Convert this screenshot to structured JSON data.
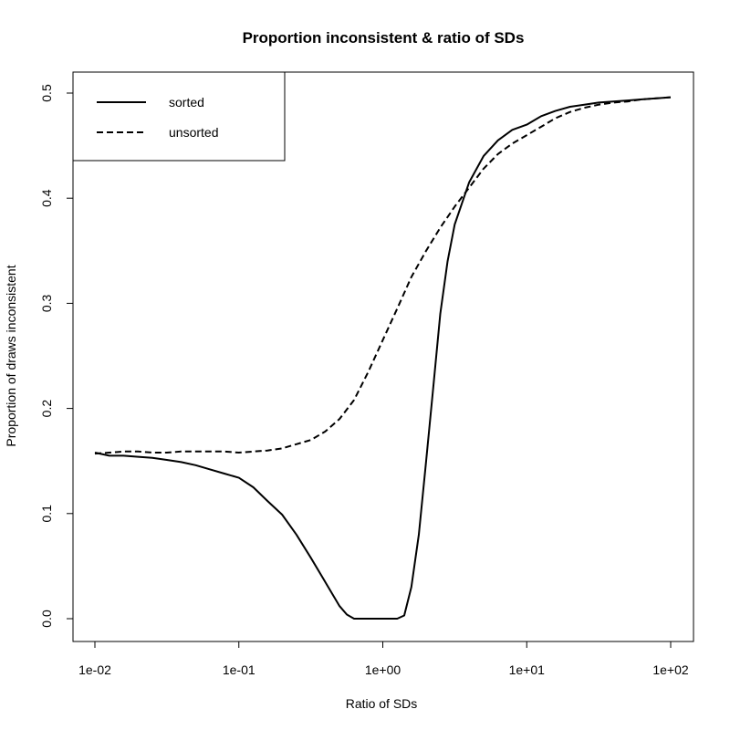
{
  "chart_data": {
    "type": "line",
    "title": "Proportion inconsistent & ratio of SDs",
    "xlabel": "Ratio of SDs",
    "ylabel": "Proportion of draws inconsistent",
    "x_scale": "log",
    "xlim": [
      0.01,
      100
    ],
    "ylim": [
      0.0,
      0.5
    ],
    "x_ticks": [
      {
        "value": 0.01,
        "label": "1e-02"
      },
      {
        "value": 0.1,
        "label": "1e-01"
      },
      {
        "value": 1,
        "label": "1e+00"
      },
      {
        "value": 10,
        "label": "1e+01"
      },
      {
        "value": 100,
        "label": "1e+02"
      }
    ],
    "y_ticks": [
      {
        "value": 0.0,
        "label": "0.0"
      },
      {
        "value": 0.1,
        "label": "0.1"
      },
      {
        "value": 0.2,
        "label": "0.2"
      },
      {
        "value": 0.3,
        "label": "0.3"
      },
      {
        "value": 0.4,
        "label": "0.4"
      },
      {
        "value": 0.5,
        "label": "0.5"
      }
    ],
    "grid": false,
    "legend_position": "top-left",
    "series": [
      {
        "name": "sorted",
        "line_style": "solid",
        "color": "#000000",
        "x": [
          0.01,
          0.0126,
          0.0158,
          0.02,
          0.0251,
          0.0316,
          0.0398,
          0.0501,
          0.0631,
          0.0794,
          0.1,
          0.126,
          0.158,
          0.2,
          0.251,
          0.316,
          0.398,
          0.501,
          0.562,
          0.631,
          0.708,
          0.794,
          0.891,
          1.0,
          1.12,
          1.26,
          1.41,
          1.58,
          1.78,
          2.0,
          2.24,
          2.51,
          2.82,
          3.16,
          3.98,
          5.01,
          6.31,
          7.94,
          10.0,
          12.6,
          15.8,
          20.0,
          25.1,
          31.6,
          39.8,
          50.1,
          63.1,
          79.4,
          100.0
        ],
        "y": [
          0.158,
          0.155,
          0.155,
          0.154,
          0.153,
          0.151,
          0.149,
          0.146,
          0.142,
          0.138,
          0.134,
          0.125,
          0.112,
          0.099,
          0.08,
          0.058,
          0.035,
          0.012,
          0.004,
          0.0,
          0.0,
          0.0,
          0.0,
          0.0,
          0.0,
          0.0,
          0.003,
          0.03,
          0.08,
          0.15,
          0.22,
          0.29,
          0.34,
          0.375,
          0.415,
          0.44,
          0.455,
          0.465,
          0.47,
          0.478,
          0.483,
          0.487,
          0.489,
          0.491,
          0.492,
          0.493,
          0.494,
          0.495,
          0.496
        ]
      },
      {
        "name": "unsorted",
        "line_style": "dashed",
        "color": "#000000",
        "x": [
          0.01,
          0.0126,
          0.0158,
          0.02,
          0.0251,
          0.0316,
          0.0398,
          0.0501,
          0.0631,
          0.0794,
          0.1,
          0.126,
          0.158,
          0.2,
          0.251,
          0.316,
          0.398,
          0.501,
          0.631,
          0.794,
          1.0,
          1.26,
          1.58,
          2.0,
          2.51,
          3.16,
          3.98,
          5.01,
          6.31,
          7.94,
          10.0,
          12.6,
          15.8,
          20.0,
          25.1,
          31.6,
          39.8,
          50.1,
          63.1,
          79.4,
          100.0
        ],
        "y": [
          0.157,
          0.158,
          0.159,
          0.159,
          0.158,
          0.158,
          0.159,
          0.159,
          0.159,
          0.159,
          0.158,
          0.159,
          0.16,
          0.162,
          0.166,
          0.17,
          0.178,
          0.19,
          0.208,
          0.235,
          0.265,
          0.295,
          0.325,
          0.35,
          0.372,
          0.392,
          0.41,
          0.428,
          0.442,
          0.452,
          0.46,
          0.468,
          0.476,
          0.482,
          0.486,
          0.489,
          0.491,
          0.492,
          0.494,
          0.495,
          0.496
        ]
      }
    ]
  }
}
